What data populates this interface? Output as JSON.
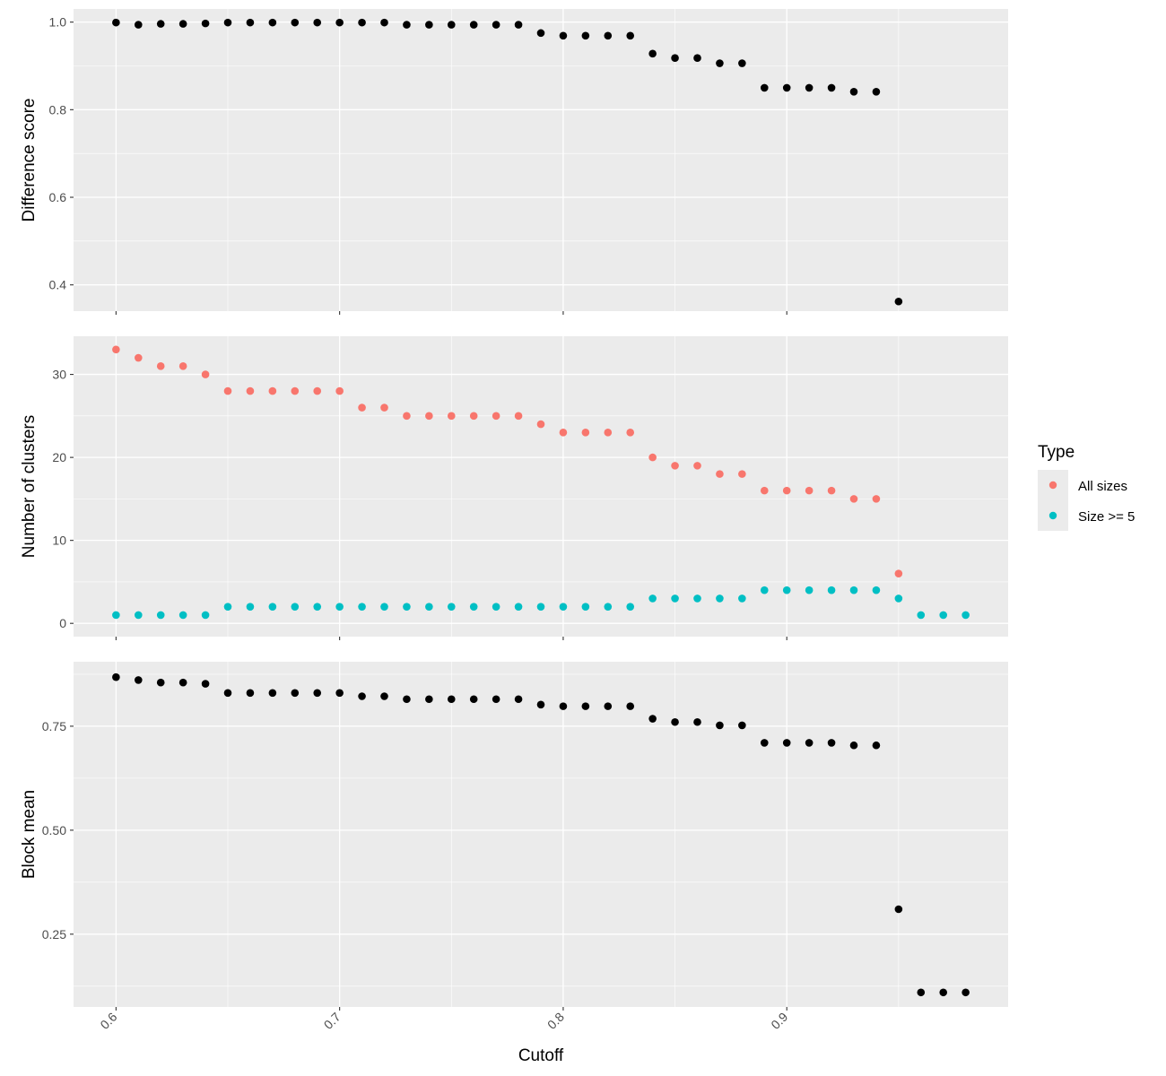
{
  "chart_data": [
    {
      "type": "scatter",
      "id": "difference",
      "ylabel": "Difference score",
      "xlim": [
        0.581,
        0.999
      ],
      "ylim": [
        0.34,
        1.03
      ],
      "yticks": [
        0.4,
        0.6,
        0.8,
        1.0
      ],
      "ytick_labels": [
        "0.4",
        "0.6",
        "0.8",
        "1.0"
      ],
      "minor_yticks": [
        0.5,
        0.7,
        0.9
      ],
      "series": [
        {
          "color": "#000000",
          "x": [
            0.6,
            0.61,
            0.62,
            0.63,
            0.64,
            0.65,
            0.66,
            0.67,
            0.68,
            0.69,
            0.7,
            0.71,
            0.72,
            0.73,
            0.74,
            0.75,
            0.76,
            0.77,
            0.78,
            0.79,
            0.8,
            0.81,
            0.82,
            0.83,
            0.84,
            0.85,
            0.86,
            0.87,
            0.88,
            0.89,
            0.9,
            0.91,
            0.92,
            0.93,
            0.94,
            0.95
          ],
          "y": [
            0.999,
            0.994,
            0.996,
            0.996,
            0.997,
            0.999,
            0.999,
            0.999,
            0.999,
            0.999,
            0.999,
            0.999,
            0.999,
            0.994,
            0.994,
            0.994,
            0.994,
            0.994,
            0.994,
            0.975,
            0.969,
            0.969,
            0.969,
            0.969,
            0.928,
            0.918,
            0.918,
            0.906,
            0.906,
            0.85,
            0.85,
            0.85,
            0.85,
            0.841,
            0.841,
            0.362
          ]
        }
      ]
    },
    {
      "type": "scatter",
      "id": "clusters",
      "ylabel": "Number of clusters",
      "xlim": [
        0.581,
        0.999
      ],
      "ylim": [
        -1.6,
        34.6
      ],
      "yticks": [
        0,
        10,
        20,
        30
      ],
      "ytick_labels": [
        "0",
        "10",
        "20",
        "30"
      ],
      "minor_yticks": [
        5,
        15,
        25
      ],
      "series": [
        {
          "name": "All sizes",
          "color": "#F8766D",
          "x": [
            0.6,
            0.61,
            0.62,
            0.63,
            0.64,
            0.65,
            0.66,
            0.67,
            0.68,
            0.69,
            0.7,
            0.71,
            0.72,
            0.73,
            0.74,
            0.75,
            0.76,
            0.77,
            0.78,
            0.79,
            0.8,
            0.81,
            0.82,
            0.83,
            0.84,
            0.85,
            0.86,
            0.87,
            0.88,
            0.89,
            0.9,
            0.91,
            0.92,
            0.93,
            0.94,
            0.95
          ],
          "y": [
            33,
            32,
            31,
            31,
            30,
            28,
            28,
            28,
            28,
            28,
            28,
            26,
            26,
            25,
            25,
            25,
            25,
            25,
            25,
            24,
            23,
            23,
            23,
            23,
            20,
            19,
            19,
            18,
            18,
            16,
            16,
            16,
            16,
            15,
            15,
            6
          ]
        },
        {
          "name": "Size >= 5",
          "color": "#00BFC4",
          "x": [
            0.6,
            0.61,
            0.62,
            0.63,
            0.64,
            0.65,
            0.66,
            0.67,
            0.68,
            0.69,
            0.7,
            0.71,
            0.72,
            0.73,
            0.74,
            0.75,
            0.76,
            0.77,
            0.78,
            0.79,
            0.8,
            0.81,
            0.82,
            0.83,
            0.84,
            0.85,
            0.86,
            0.87,
            0.88,
            0.89,
            0.9,
            0.91,
            0.92,
            0.93,
            0.94,
            0.95,
            0.96,
            0.97,
            0.98
          ],
          "y": [
            1,
            1,
            1,
            1,
            1,
            2,
            2,
            2,
            2,
            2,
            2,
            2,
            2,
            2,
            2,
            2,
            2,
            2,
            2,
            2,
            2,
            2,
            2,
            2,
            3,
            3,
            3,
            3,
            3,
            4,
            4,
            4,
            4,
            4,
            4,
            3,
            1,
            1,
            1
          ]
        }
      ],
      "legend": {
        "title": "Type",
        "position": "right",
        "entries": [
          {
            "label": "All sizes",
            "color": "#F8766D"
          },
          {
            "label": "Size >= 5",
            "color": "#00BFC4"
          }
        ]
      }
    },
    {
      "type": "scatter",
      "id": "blockmean",
      "ylabel": "Block mean",
      "xlabel": "Cutoff",
      "xlim": [
        0.581,
        0.999
      ],
      "ylim": [
        0.075,
        0.905
      ],
      "yticks": [
        0.25,
        0.5,
        0.75
      ],
      "ytick_labels": [
        "0.25",
        "0.50",
        "0.75"
      ],
      "minor_yticks": [
        0.125,
        0.375,
        0.625,
        0.875
      ],
      "xticks": [
        0.6,
        0.7,
        0.8,
        0.9
      ],
      "xtick_labels": [
        "0.6",
        "0.7",
        "0.8",
        "0.9"
      ],
      "minor_xticks": [
        0.65,
        0.75,
        0.85,
        0.95
      ],
      "series": [
        {
          "color": "#000000",
          "x": [
            0.6,
            0.61,
            0.62,
            0.63,
            0.64,
            0.65,
            0.66,
            0.67,
            0.68,
            0.69,
            0.7,
            0.71,
            0.72,
            0.73,
            0.74,
            0.75,
            0.76,
            0.77,
            0.78,
            0.79,
            0.8,
            0.81,
            0.82,
            0.83,
            0.84,
            0.85,
            0.86,
            0.87,
            0.88,
            0.89,
            0.9,
            0.91,
            0.92,
            0.93,
            0.94,
            0.95,
            0.96,
            0.97,
            0.98
          ],
          "y": [
            0.868,
            0.861,
            0.855,
            0.855,
            0.852,
            0.83,
            0.83,
            0.83,
            0.83,
            0.83,
            0.83,
            0.822,
            0.822,
            0.815,
            0.815,
            0.815,
            0.815,
            0.815,
            0.815,
            0.802,
            0.798,
            0.798,
            0.798,
            0.798,
            0.768,
            0.76,
            0.76,
            0.752,
            0.752,
            0.71,
            0.71,
            0.71,
            0.71,
            0.704,
            0.704,
            0.31,
            0.11,
            0.11,
            0.11
          ]
        }
      ]
    }
  ]
}
